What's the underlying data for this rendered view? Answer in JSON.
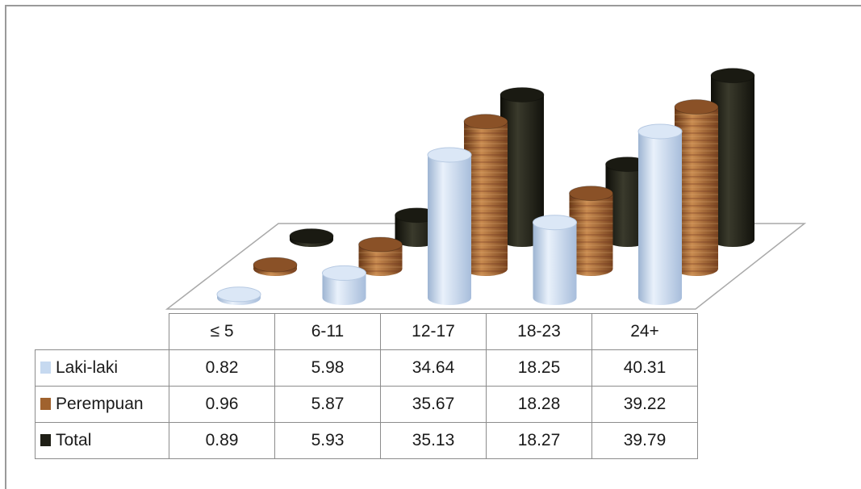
{
  "chart_data": {
    "type": "bar",
    "style": "3D cylinder bars with data table",
    "categories": [
      "≤ 5",
      "6-11",
      "12-17",
      "18-23",
      "24+"
    ],
    "series": [
      {
        "name": "Laki-laki",
        "color": "#c6d9f0",
        "values": [
          0.82,
          5.98,
          34.64,
          18.25,
          40.31
        ]
      },
      {
        "name": "Perempuan",
        "color": "#a0622e",
        "values": [
          0.96,
          5.87,
          35.67,
          18.28,
          39.22
        ]
      },
      {
        "name": "Total",
        "color": "#1f1f16",
        "values": [
          0.89,
          5.93,
          35.13,
          18.27,
          39.79
        ]
      }
    ],
    "table": {
      "header": [
        "≤ 5",
        "6-11",
        "12-17",
        "18-23",
        "24+"
      ],
      "rows": [
        {
          "label": "Laki-laki",
          "values": [
            "0.82",
            "5.98",
            "34.64",
            "18.25",
            "40.31"
          ]
        },
        {
          "label": "Perempuan",
          "values": [
            "0.96",
            "5.87",
            "35.67",
            "18.28",
            "39.22"
          ]
        },
        {
          "label": "Total",
          "values": [
            "0.89",
            "5.93",
            "35.13",
            "18.27",
            "39.79"
          ]
        }
      ]
    },
    "legend": "in data table"
  }
}
